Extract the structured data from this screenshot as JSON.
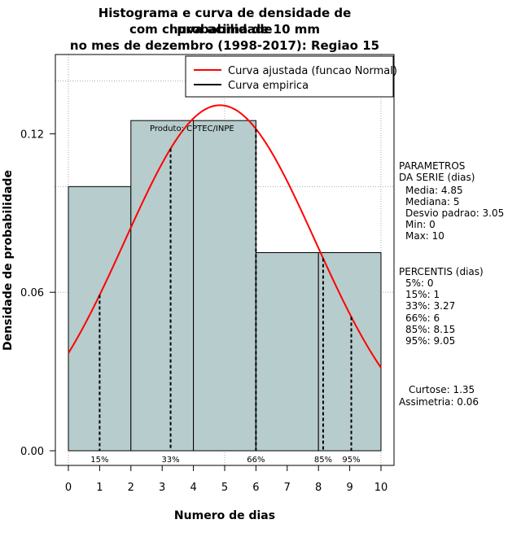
{
  "title": {
    "line1": "Histograma e curva de densidade de probabilidade",
    "line2": "com chuva acima de 10 mm",
    "line3": "no mes de dezembro (1998-2017): Regiao 15"
  },
  "product_label": "Produto: CPTEC/INPE",
  "legend": {
    "items": [
      {
        "label": "Curva ajustada (funcao Normal)",
        "color": "#ff0000"
      },
      {
        "label": "Curva empirica",
        "color": "#000000"
      }
    ]
  },
  "parameters": {
    "header1": "PARAMETROS",
    "header2": "DA SERIE (dias)",
    "lines": [
      "Media: 4.85",
      "Mediana: 5",
      "Desvio padrao: 3.05",
      "Min: 0",
      "Max: 10"
    ]
  },
  "percentiles": {
    "header": "PERCENTIS (dias)",
    "lines": [
      "5%: 0",
      "15%: 1",
      "33%: 3.27",
      "66%: 6",
      "85%: 8.15",
      "95%: 9.05"
    ]
  },
  "shape_stats": {
    "curtose": "Curtose: 1.35",
    "assimetria": "Assimetria: 0.06"
  },
  "chart_data": {
    "type": "bar",
    "title": "Histograma e curva de densidade de probabilidade com chuva acima de 10 mm no mes de dezembro (1998-2017): Regiao 15",
    "xlabel": "Numero de dias",
    "ylabel": "Densidade de probabilidade",
    "xlim": [
      0,
      10
    ],
    "ylim": [
      0,
      0.15
    ],
    "x_ticks": [
      0,
      1,
      2,
      3,
      4,
      5,
      6,
      7,
      8,
      9,
      10
    ],
    "y_ticks": [
      0.0,
      0.06,
      0.12
    ],
    "y_tick_labels": [
      "0.00",
      "0.06",
      "0.12"
    ],
    "bins": [
      {
        "start": 0,
        "end": 2,
        "density": 0.1
      },
      {
        "start": 2,
        "end": 4,
        "density": 0.125
      },
      {
        "start": 4,
        "end": 6,
        "density": 0.125
      },
      {
        "start": 6,
        "end": 8,
        "density": 0.075
      },
      {
        "start": 8,
        "end": 10,
        "density": 0.075
      }
    ],
    "bar_color": "#b7cccc",
    "normal_curve": {
      "name": "Curva ajustada (funcao Normal)",
      "mean": 4.85,
      "sd": 3.05,
      "color": "#ff0000"
    },
    "percentile_markers": [
      {
        "label": "15%",
        "x": 1
      },
      {
        "label": "33%",
        "x": 3.27
      },
      {
        "label": "66%",
        "x": 6
      },
      {
        "label": "85%",
        "x": 8.15
      },
      {
        "label": "95%",
        "x": 9.05
      }
    ],
    "grid": true
  }
}
